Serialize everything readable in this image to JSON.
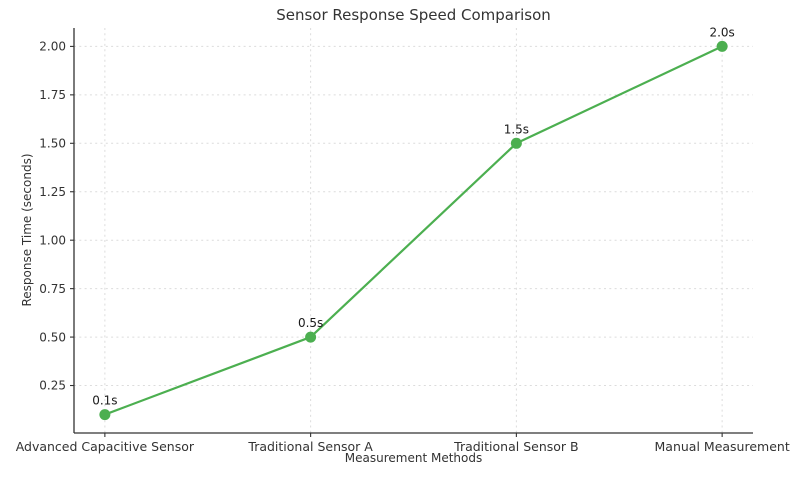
{
  "page": {
    "background": "#ffffff"
  },
  "chart_data": {
    "type": "line",
    "title": "Sensor Response Speed Comparison",
    "xlabel": "Measurement Methods",
    "ylabel": "Response Time (seconds)",
    "categories": [
      "Advanced Capacitive Sensor",
      "Traditional Sensor A",
      "Traditional Sensor B",
      "Manual Measurement"
    ],
    "values": [
      0.1,
      0.5,
      1.5,
      2.0
    ],
    "point_labels": [
      "0.1s",
      "0.5s",
      "1.5s",
      "2.0s"
    ],
    "yticks": [
      0.25,
      0.5,
      0.75,
      1.0,
      1.25,
      1.5,
      1.75,
      2.0
    ],
    "ytick_labels": [
      "0.25",
      "0.50",
      "0.75",
      "1.00",
      "1.25",
      "1.50",
      "1.75",
      "2.00"
    ],
    "ylim": [
      0.005,
      2.095
    ],
    "grid": true,
    "grid_style": "dashed",
    "legend_position": "none",
    "colors": {
      "line": "#4caf50",
      "marker": "#4caf50",
      "grid": "#dcdcdc",
      "spine": "#333333",
      "tick": "#333333",
      "text": "#333333",
      "annotation": "#1a1a1a"
    }
  }
}
